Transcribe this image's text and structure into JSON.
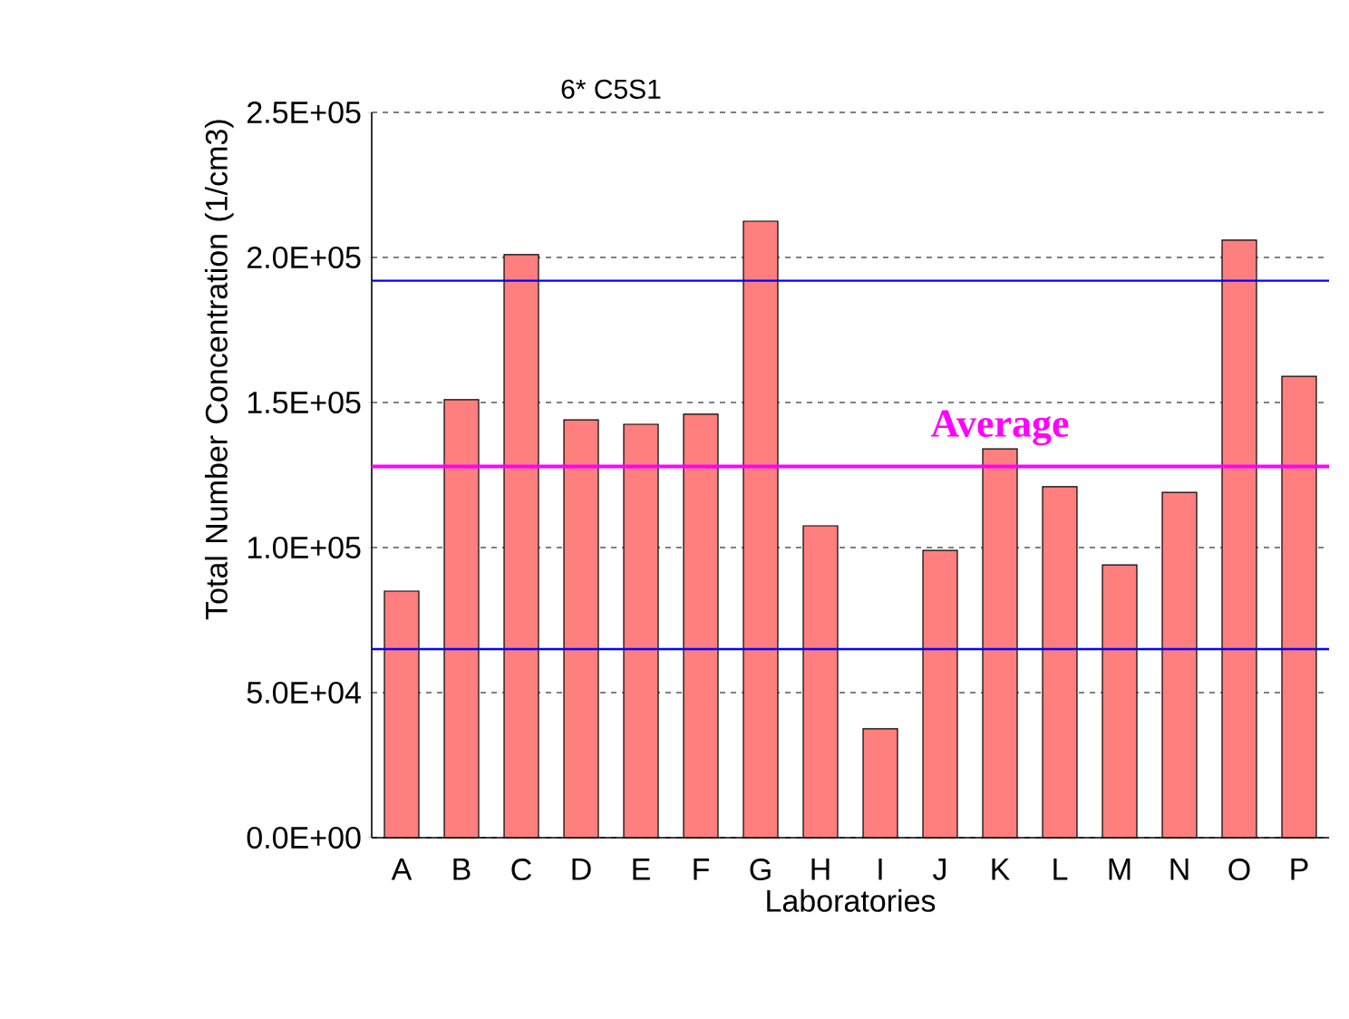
{
  "chart_data": {
    "type": "bar",
    "title": "6* C5S1",
    "xlabel": "Laboratories",
    "ylabel": "Total Number Concentration (1/cm3)",
    "categories": [
      "A",
      "B",
      "C",
      "D",
      "E",
      "F",
      "G",
      "H",
      "I",
      "J",
      "K",
      "L",
      "M",
      "N",
      "O",
      "P"
    ],
    "values": [
      85000,
      151000,
      201000,
      144000,
      142500,
      146000,
      212500,
      107500,
      37500,
      99000,
      134000,
      121000,
      94000,
      119000,
      206000,
      159000
    ],
    "color": "#ff7f7f",
    "ylim": [
      0,
      250000
    ],
    "yticks": [
      {
        "value": 0,
        "label": "0.0E+00"
      },
      {
        "value": 50000,
        "label": "5.0E+04"
      },
      {
        "value": 100000,
        "label": "1.0E+05"
      },
      {
        "value": 150000,
        "label": "1.5E+05"
      },
      {
        "value": 200000,
        "label": "2.0E+05"
      },
      {
        "value": 250000,
        "label": "2.5E+05"
      }
    ],
    "grid": "y",
    "ref_lines": [
      {
        "axis": "y",
        "value": 192000,
        "color": "#0000ff"
      },
      {
        "axis": "y",
        "value": 65000,
        "color": "#0000ff"
      },
      {
        "axis": "y",
        "value": 128000,
        "color": "#ff00ff",
        "label": "Average"
      }
    ]
  }
}
